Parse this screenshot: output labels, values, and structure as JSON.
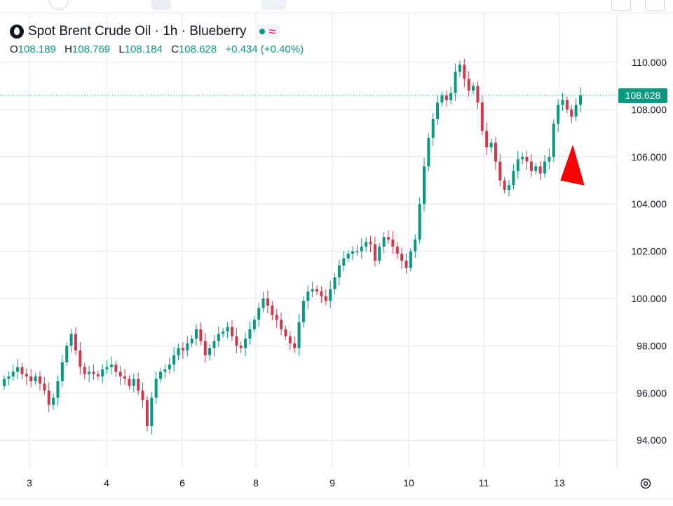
{
  "legend": {
    "symbol_title": "Spot Brent Crude Oil · 1h · Blueberry",
    "o_label": "O",
    "o_value": "108.189",
    "h_label": "H",
    "h_value": "108.769",
    "l_label": "L",
    "l_value": "108.184",
    "c_label": "C",
    "c_value": "108.628",
    "change": "+0.434 (+0.40%)"
  },
  "colors": {
    "up": "#089981",
    "down": "#d0384c",
    "grid": "#e4e6ec",
    "marker": "#ff0000"
  },
  "icons": {
    "symbol": "oil-drop-icon",
    "status": "market-status-dot",
    "settings": "settings-gear-icon"
  },
  "chart_data": {
    "type": "candlestick",
    "title": "Spot Brent Crude Oil · 1h · Blueberry",
    "ylim": [
      92.7,
      110.5
    ],
    "y_ticks": [
      "110.000",
      "108.000",
      "106.000",
      "104.000",
      "102.000",
      "100.000",
      "98.000",
      "96.000",
      "94.000"
    ],
    "x_ticks": [
      "3",
      "4",
      "6",
      "8",
      "9",
      "10",
      "11",
      "13"
    ],
    "last_price": 108.628,
    "last_price_label": "108.628",
    "grid": true,
    "candles_close_path": [
      96.6,
      96.7,
      96.9,
      97.1,
      96.8,
      96.7,
      96.5,
      96.7,
      96.4,
      96.1,
      95.5,
      95.8,
      96.5,
      97.3,
      98.0,
      98.5,
      97.8,
      97.1,
      96.8,
      96.9,
      96.8,
      96.7,
      97.0,
      97.1,
      97.2,
      96.9,
      96.7,
      96.6,
      96.3,
      96.6,
      96.1,
      95.7,
      94.6,
      95.8,
      96.6,
      96.9,
      97.0,
      97.2,
      97.6,
      97.9,
      97.8,
      98.1,
      98.3,
      98.7,
      98.2,
      97.6,
      97.9,
      98.2,
      98.5,
      98.6,
      98.8,
      98.4,
      98.0,
      97.9,
      98.3,
      98.7,
      99.1,
      99.6,
      100.0,
      99.7,
      99.3,
      99.1,
      98.7,
      98.4,
      98.1,
      97.9,
      99.0,
      99.9,
      100.3,
      100.4,
      100.3,
      100.1,
      99.9,
      100.4,
      100.9,
      101.4,
      101.7,
      101.9,
      102.0,
      102.0,
      102.2,
      102.4,
      102.3,
      101.6,
      102.2,
      102.6,
      102.5,
      102.2,
      101.9,
      101.6,
      101.3,
      102.0,
      102.5,
      104.0,
      105.6,
      106.8,
      107.6,
      108.3,
      108.6,
      108.4,
      108.7,
      109.6,
      109.9,
      109.3,
      108.8,
      109.0,
      108.3,
      107.1,
      106.4,
      106.6,
      105.8,
      105.0,
      104.6,
      104.8,
      105.4,
      105.9,
      106.0,
      105.8,
      105.4,
      105.6,
      105.3,
      105.8,
      106.0,
      107.4,
      108.2,
      108.4,
      108.0,
      107.7,
      108.2,
      108.6
    ]
  },
  "annotation_marker": "red-triangle-up"
}
